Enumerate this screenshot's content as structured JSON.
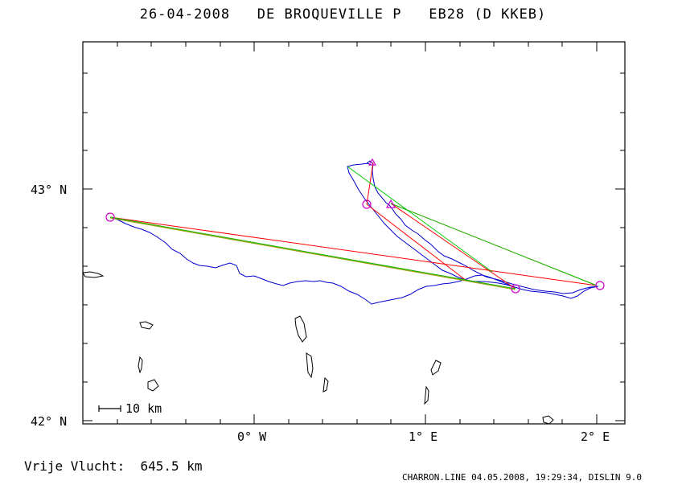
{
  "header": {
    "title": "26-04-2008   DE BROQUEVILLE P   EB28 (D KKEB)"
  },
  "axes": {
    "lat_labels": [
      "43° N",
      "42° N"
    ],
    "lon_labels": [
      "0° W",
      "1° E",
      "2° E"
    ]
  },
  "scale_bar": {
    "label": "10 km"
  },
  "footer": {
    "distance_text": "Vrije Vlucht:  645.5 km",
    "credits": "CHARRON.LINE 04.05.2008, 19:29:34, DISLIN 9.0"
  },
  "colors": {
    "track": "#0000cc",
    "triangle": "#ff0000",
    "green_leg": "#00cc00",
    "turnpoint": "#cc00cc",
    "coast": "#000000"
  },
  "turnpoints": [
    "start",
    "tp1",
    "tp2",
    "tp3",
    "tp4",
    "finish"
  ]
}
